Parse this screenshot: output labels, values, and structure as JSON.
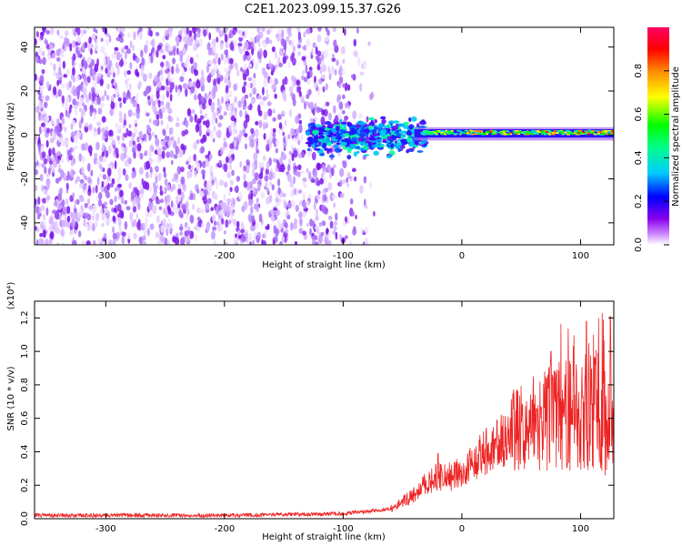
{
  "title": "C2E1.2023.099.15.37.G26",
  "chart_data": [
    {
      "type": "heatmap",
      "title": "C2E1.2023.099.15.37.G26",
      "xlabel": "Height of straight line (km)",
      "ylabel": "Frequency (Hz)",
      "xlim": [
        -360,
        128
      ],
      "ylim": [
        -50,
        49
      ],
      "x_ticks": [
        -300,
        -200,
        -100,
        0,
        100
      ],
      "y_ticks": [
        -40,
        -20,
        0,
        20,
        40
      ],
      "colorbar": {
        "label": "Normalized spectral amplitude",
        "range": [
          0,
          1
        ],
        "ticks": [
          "0.0",
          "0.2",
          "0.4",
          "0.6",
          "0.8"
        ],
        "colors": [
          "#ffffff",
          "#cc88ff",
          "#8800ee",
          "#0000ff",
          "#00ccff",
          "#00ff88",
          "#00ff00",
          "#ffff00",
          "#ff8800",
          "#ff0000",
          "#ff0066"
        ]
      },
      "regions": [
        {
          "name": "broadband noise",
          "x_range": [
            -360,
            -80
          ],
          "freq_range": [
            -50,
            49
          ],
          "amplitude": "low"
        },
        {
          "name": "transition",
          "x_range": [
            -130,
            -30
          ],
          "freq_range": [
            -15,
            10
          ],
          "amplitude": "medium"
        },
        {
          "name": "narrowband line",
          "x_range": [
            -30,
            128
          ],
          "freq_range": [
            -2,
            3
          ],
          "center_freq": 1,
          "amplitude": "high"
        }
      ],
      "grid": false
    },
    {
      "type": "line",
      "xlabel": "Height of straight line (km)",
      "ylabel": "SNR (10 * v/v)",
      "y_multiplier": "(x10⁴)",
      "xlim": [
        -360,
        128
      ],
      "ylim": [
        0,
        1.3
      ],
      "x_ticks": [
        -300,
        -200,
        -100,
        0,
        100
      ],
      "y_ticks": [
        "0.0",
        "0.2",
        "0.4",
        "0.6",
        "0.8",
        "1.0",
        "1.2"
      ],
      "color": "#ee2222",
      "envelope": {
        "x": [
          -360,
          -200,
          -100,
          -60,
          -40,
          -30,
          -20,
          -10,
          0,
          20,
          40,
          60,
          80,
          100,
          110,
          128
        ],
        "y": [
          0.02,
          0.02,
          0.03,
          0.06,
          0.14,
          0.22,
          0.25,
          0.25,
          0.28,
          0.4,
          0.5,
          0.55,
          0.62,
          0.6,
          0.66,
          0.62
        ]
      },
      "spike_peaks": [
        {
          "x": -20,
          "y": 0.39
        },
        {
          "x": 75,
          "y": 1.0
        },
        {
          "x": 80,
          "y": 1.07
        },
        {
          "x": 105,
          "y": 1.18
        },
        {
          "x": 118,
          "y": 1.23
        },
        {
          "x": 125,
          "y": 1.21
        }
      ],
      "grid": false
    }
  ]
}
